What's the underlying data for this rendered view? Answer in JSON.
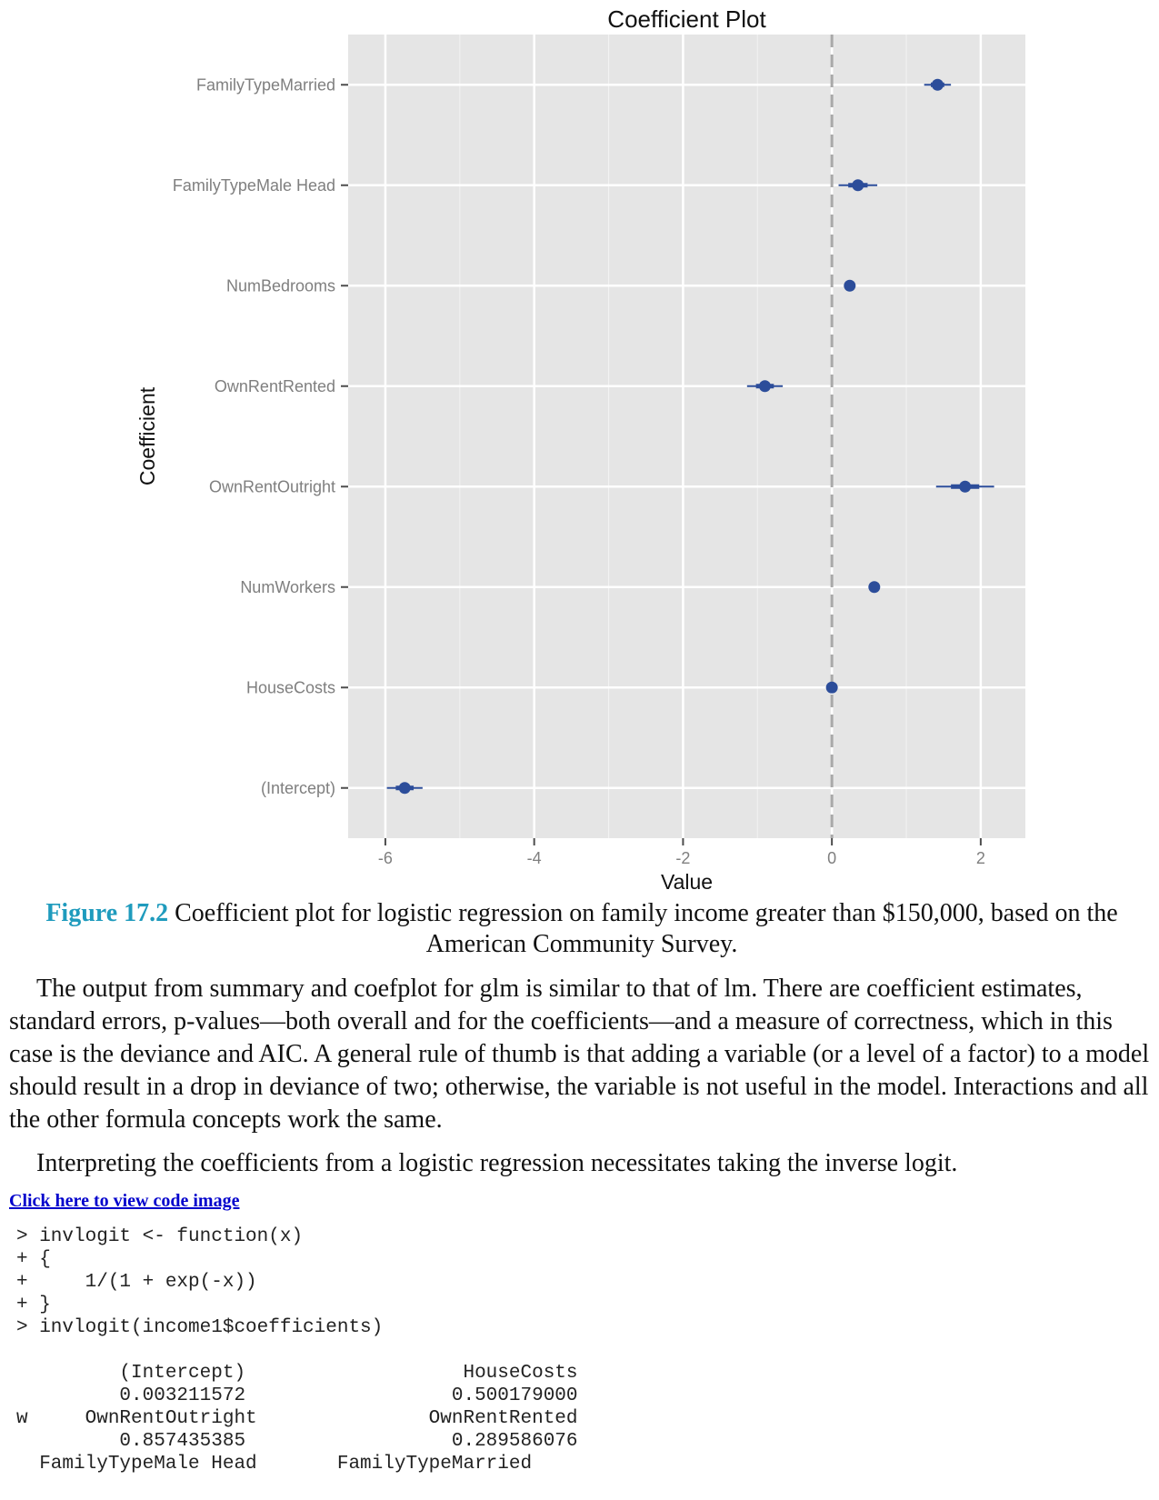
{
  "chart_data": {
    "type": "scatter",
    "title": "Coefficient Plot",
    "xlabel": "Value",
    "ylabel": "Coefficient",
    "xlim": [
      -6.5,
      2.6
    ],
    "xticks": [
      "-6",
      "-4",
      "-2",
      "0",
      "2"
    ],
    "xtick_values": [
      -6,
      -4,
      -2,
      0,
      2
    ],
    "grid": true,
    "reference_line": {
      "x": 0,
      "style": "dashed"
    },
    "categories": [
      "FamilyTypeMarried",
      "FamilyTypeMale Head",
      "NumBedrooms",
      "OwnRentRented",
      "OwnRentOutright",
      "NumWorkers",
      "HouseCosts",
      "(Intercept)"
    ],
    "estimates": [
      1.42,
      0.35,
      0.24,
      -0.9,
      1.79,
      0.57,
      0.0,
      -5.74
    ],
    "ci_inner_low": [
      1.33,
      0.22,
      0.22,
      -1.02,
      1.6,
      0.54,
      0.0,
      -5.86
    ],
    "ci_inner_high": [
      1.51,
      0.48,
      0.26,
      -0.78,
      1.98,
      0.6,
      0.0,
      -5.62
    ],
    "ci_outer_low": [
      1.24,
      0.09,
      0.2,
      -1.14,
      1.4,
      0.51,
      0.0,
      -5.98
    ],
    "ci_outer_high": [
      1.6,
      0.61,
      0.28,
      -0.66,
      2.18,
      0.63,
      0.0,
      -5.5
    ],
    "colors": {
      "panel": "#e5e5e5",
      "grid": "#ffffff",
      "point": "#2c4d9a",
      "refline": "#a9a9a9",
      "tick": "#4d4d4d"
    }
  },
  "caption": {
    "label": "Figure 17.2",
    "text": " Coefficient plot for logistic regression on family income greater than $150,000, based on the American Community Survey."
  },
  "paragraph1": "The output from summary and coefplot for glm is similar to that of lm. There are coefficient estimates, standard errors, p-values—both overall and for the coefficients—and a measure of correctness, which in this case is the deviance and AIC. A general rule of thumb is that adding a variable (or a level of a factor) to a model should result in a drop in deviance of two; otherwise, the variable is not useful in the model. Interactions and all the other formula concepts work the same.",
  "paragraph2": "Interpreting the coefficients from a logistic regression necessitates taking the inverse logit.",
  "code_link": "Click here to view code image",
  "code_lines": [
    "> invlogit <- function(x)",
    "+ {",
    "+     1/(1 + exp(-x))",
    "+ }",
    "> invlogit(income1$coefficients)",
    "",
    "         (Intercept)                   HouseCosts",
    "         0.003211572                  0.500179000",
    "w     OwnRentOutright               OwnRentRented",
    "         0.857435385                  0.289586076",
    "  FamilyTypeMale Head       FamilyTypeMarried"
  ]
}
